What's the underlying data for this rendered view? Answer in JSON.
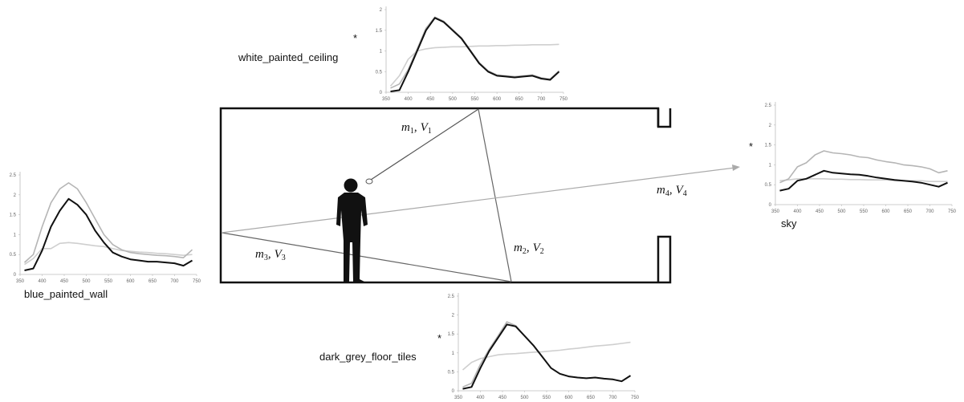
{
  "chart_data": [
    {
      "type": "line",
      "title": "white_painted_ceiling",
      "annotation": "*",
      "x": [
        360,
        380,
        400,
        420,
        440,
        460,
        480,
        500,
        520,
        540,
        560,
        580,
        600,
        620,
        640,
        660,
        680,
        700,
        720,
        740
      ],
      "series": [
        {
          "color": "#cfcfcf",
          "values": [
            0.15,
            0.4,
            0.8,
            1.0,
            1.05,
            1.08,
            1.09,
            1.1,
            1.1,
            1.11,
            1.12,
            1.12,
            1.13,
            1.13,
            1.14,
            1.14,
            1.15,
            1.15,
            1.15,
            1.16
          ]
        },
        {
          "color": "#b5b5b5",
          "values": [
            0.1,
            0.2,
            0.55,
            1.05,
            1.55,
            1.82,
            1.72,
            1.52,
            1.32,
            1.02,
            0.72,
            0.52,
            0.42,
            0.4,
            0.38,
            0.4,
            0.42,
            0.35,
            0.32,
            0.52
          ]
        },
        {
          "color": "#111111",
          "values": [
            0.02,
            0.05,
            0.5,
            1.0,
            1.5,
            1.8,
            1.7,
            1.5,
            1.3,
            1.0,
            0.7,
            0.5,
            0.4,
            0.38,
            0.36,
            0.38,
            0.4,
            0.33,
            0.3,
            0.5
          ]
        }
      ],
      "xlim": [
        350,
        750
      ],
      "ylim": [
        0,
        2
      ],
      "xticks": [
        350,
        400,
        450,
        500,
        550,
        600,
        650,
        700,
        750
      ],
      "yticks": [
        0,
        0.5,
        1,
        1.5,
        2
      ]
    },
    {
      "type": "line",
      "title": "sky",
      "annotation": "*",
      "x": [
        360,
        380,
        400,
        420,
        440,
        460,
        480,
        500,
        520,
        540,
        560,
        580,
        600,
        620,
        640,
        660,
        680,
        700,
        720,
        740
      ],
      "series": [
        {
          "color": "#cfcfcf",
          "values": [
            0.6,
            0.62,
            0.65,
            0.65,
            0.65,
            0.65,
            0.64,
            0.64,
            0.63,
            0.63,
            0.62,
            0.62,
            0.62,
            0.6,
            0.6,
            0.6,
            0.6,
            0.58,
            0.58,
            0.58
          ]
        },
        {
          "color": "#b5b5b5",
          "values": [
            0.55,
            0.65,
            0.95,
            1.05,
            1.25,
            1.35,
            1.3,
            1.28,
            1.25,
            1.2,
            1.18,
            1.12,
            1.08,
            1.05,
            1.0,
            0.98,
            0.95,
            0.9,
            0.8,
            0.85
          ]
        },
        {
          "color": "#111111",
          "values": [
            0.35,
            0.4,
            0.6,
            0.65,
            0.75,
            0.85,
            0.8,
            0.78,
            0.76,
            0.75,
            0.72,
            0.68,
            0.65,
            0.62,
            0.6,
            0.58,
            0.55,
            0.5,
            0.45,
            0.55
          ]
        }
      ],
      "xlim": [
        350,
        750
      ],
      "ylim": [
        0,
        2.5
      ],
      "xticks": [
        350,
        400,
        450,
        500,
        550,
        600,
        650,
        700,
        750
      ],
      "yticks": [
        0,
        0.5,
        1,
        1.5,
        2,
        2.5
      ]
    },
    {
      "type": "line",
      "title": "blue_painted_wall",
      "x": [
        360,
        380,
        400,
        420,
        440,
        460,
        480,
        500,
        520,
        540,
        560,
        580,
        600,
        620,
        640,
        660,
        680,
        700,
        720,
        740
      ],
      "series": [
        {
          "color": "#cfcfcf",
          "values": [
            0.25,
            0.4,
            0.65,
            0.65,
            0.78,
            0.8,
            0.78,
            0.75,
            0.72,
            0.7,
            0.65,
            0.6,
            0.58,
            0.56,
            0.55,
            0.53,
            0.52,
            0.5,
            0.48,
            0.5
          ]
        },
        {
          "color": "#b5b5b5",
          "values": [
            0.3,
            0.5,
            1.2,
            1.8,
            2.15,
            2.3,
            2.15,
            1.8,
            1.4,
            1.0,
            0.75,
            0.62,
            0.55,
            0.52,
            0.5,
            0.48,
            0.47,
            0.45,
            0.42,
            0.62
          ]
        },
        {
          "color": "#111111",
          "values": [
            0.1,
            0.15,
            0.6,
            1.2,
            1.6,
            1.9,
            1.75,
            1.5,
            1.1,
            0.8,
            0.55,
            0.45,
            0.38,
            0.35,
            0.32,
            0.32,
            0.3,
            0.28,
            0.22,
            0.35
          ]
        }
      ],
      "xlim": [
        350,
        750
      ],
      "ylim": [
        0,
        2.5
      ],
      "xticks": [
        350,
        400,
        450,
        500,
        550,
        600,
        650,
        700,
        750
      ],
      "yticks": [
        0,
        0.5,
        1,
        1.5,
        2,
        2.5
      ]
    },
    {
      "type": "line",
      "title": "dark_grey_floor_tiles",
      "annotation": "*",
      "x": [
        360,
        380,
        400,
        420,
        440,
        460,
        480,
        500,
        520,
        540,
        560,
        580,
        600,
        620,
        640,
        660,
        680,
        700,
        720,
        740
      ],
      "series": [
        {
          "color": "#cfcfcf",
          "values": [
            0.55,
            0.75,
            0.85,
            0.9,
            0.95,
            0.97,
            0.98,
            1.0,
            1.02,
            1.03,
            1.05,
            1.07,
            1.1,
            1.12,
            1.15,
            1.18,
            1.2,
            1.22,
            1.25,
            1.28
          ]
        },
        {
          "color": "#b5b5b5",
          "values": [
            0.1,
            0.2,
            0.7,
            1.1,
            1.45,
            1.82,
            1.72,
            1.45,
            1.2,
            0.9,
            0.6,
            0.45,
            0.38,
            0.35,
            0.33,
            0.35,
            0.32,
            0.3,
            0.25,
            0.4
          ]
        },
        {
          "color": "#111111",
          "values": [
            0.05,
            0.1,
            0.6,
            1.05,
            1.4,
            1.75,
            1.7,
            1.45,
            1.2,
            0.9,
            0.6,
            0.45,
            0.38,
            0.35,
            0.33,
            0.35,
            0.32,
            0.3,
            0.25,
            0.4
          ]
        }
      ],
      "xlim": [
        350,
        750
      ],
      "ylim": [
        0,
        2.5
      ],
      "xticks": [
        350,
        400,
        450,
        500,
        550,
        600,
        650,
        700,
        750
      ],
      "yticks": [
        0,
        0.5,
        1,
        1.5,
        2,
        2.5
      ]
    }
  ],
  "diagram": {
    "labels": [
      {
        "parts": [
          "m",
          "1",
          ",",
          "V",
          "1"
        ]
      },
      {
        "parts": [
          "m",
          "2",
          ",",
          "V",
          "2"
        ]
      },
      {
        "parts": [
          "m",
          "3",
          ",",
          "V",
          "3"
        ]
      },
      {
        "parts": [
          "m",
          "4",
          ",",
          "V",
          "4"
        ]
      }
    ]
  }
}
